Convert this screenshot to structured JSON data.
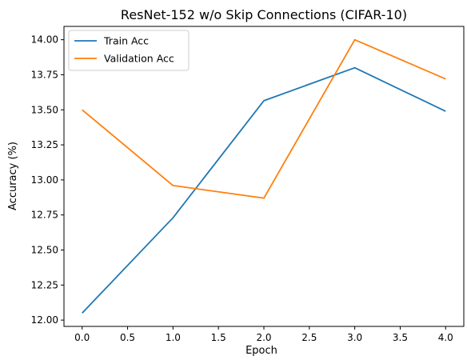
{
  "chart_data": {
    "type": "line",
    "title": "ResNet-152 w/o Skip Connections (CIFAR-10)",
    "xlabel": "Epoch",
    "ylabel": "Accuracy (%)",
    "x": [
      0,
      1,
      2,
      3,
      4
    ],
    "xlim": [
      -0.2,
      4.2
    ],
    "ylim": [
      11.955,
      14.095
    ],
    "xticks": [
      0.0,
      0.5,
      1.0,
      1.5,
      2.0,
      2.5,
      3.0,
      3.5,
      4.0
    ],
    "xtick_labels": [
      "0.0",
      "0.5",
      "1.0",
      "1.5",
      "2.0",
      "2.5",
      "3.0",
      "3.5",
      "4.0"
    ],
    "yticks": [
      12.0,
      12.25,
      12.5,
      12.75,
      13.0,
      13.25,
      13.5,
      13.75,
      14.0
    ],
    "ytick_labels": [
      "12.00",
      "12.25",
      "12.50",
      "12.75",
      "13.00",
      "13.25",
      "13.50",
      "13.75",
      "14.00"
    ],
    "grid": false,
    "legend_position": "top-left",
    "series": [
      {
        "name": "Train Acc",
        "color": "#1f77b4",
        "values": [
          12.05,
          12.73,
          13.565,
          13.8,
          13.49
        ]
      },
      {
        "name": "Validation Acc",
        "color": "#ff7f0e",
        "values": [
          13.5,
          12.96,
          12.87,
          14.0,
          13.72
        ]
      }
    ]
  }
}
